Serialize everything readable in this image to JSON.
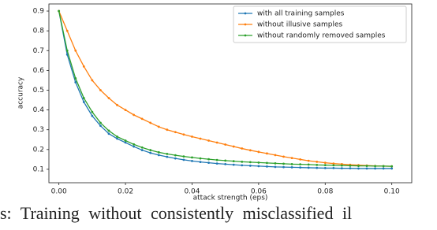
{
  "chart_data": {
    "type": "line",
    "x_label": "attack strength (eps)",
    "y_label": "accuracy",
    "caption": "s: Training without consistently misclassified il",
    "x": [
      0,
      0.0025,
      0.005,
      0.0075,
      0.01,
      0.0125,
      0.015,
      0.0175,
      0.02,
      0.0225,
      0.025,
      0.0275,
      0.03,
      0.0325,
      0.035,
      0.0375,
      0.04,
      0.0425,
      0.045,
      0.0475,
      0.05,
      0.0525,
      0.055,
      0.0575,
      0.06,
      0.0625,
      0.065,
      0.0675,
      0.07,
      0.0725,
      0.075,
      0.0775,
      0.08,
      0.0825,
      0.085,
      0.0875,
      0.09,
      0.0925,
      0.095,
      0.0975,
      0.1
    ],
    "series": [
      {
        "name": "with all training samples",
        "color": "#1f77b4",
        "values": [
          0.9,
          0.68,
          0.54,
          0.44,
          0.37,
          0.32,
          0.28,
          0.255,
          0.235,
          0.215,
          0.197,
          0.183,
          0.172,
          0.163,
          0.155,
          0.148,
          0.142,
          0.137,
          0.133,
          0.129,
          0.126,
          0.123,
          0.12,
          0.118,
          0.116,
          0.114,
          0.112,
          0.111,
          0.11,
          0.109,
          0.108,
          0.107,
          0.106,
          0.106,
          0.105,
          0.105,
          0.104,
          0.104,
          0.104,
          0.104,
          0.104
        ]
      },
      {
        "name": "without illusive samples",
        "color": "#ff7f0e",
        "values": [
          0.9,
          0.8,
          0.7,
          0.62,
          0.55,
          0.5,
          0.46,
          0.425,
          0.4,
          0.375,
          0.355,
          0.335,
          0.315,
          0.3,
          0.288,
          0.276,
          0.265,
          0.255,
          0.245,
          0.235,
          0.225,
          0.215,
          0.205,
          0.196,
          0.188,
          0.18,
          0.172,
          0.164,
          0.157,
          0.15,
          0.143,
          0.138,
          0.133,
          0.129,
          0.126,
          0.123,
          0.121,
          0.119,
          0.117,
          0.116,
          0.115
        ]
      },
      {
        "name": "without randomly removed samples",
        "color": "#2ca02c",
        "values": [
          0.9,
          0.7,
          0.56,
          0.46,
          0.39,
          0.335,
          0.295,
          0.265,
          0.245,
          0.226,
          0.21,
          0.197,
          0.186,
          0.178,
          0.171,
          0.165,
          0.16,
          0.155,
          0.151,
          0.147,
          0.144,
          0.141,
          0.138,
          0.136,
          0.134,
          0.132,
          0.13,
          0.128,
          0.126,
          0.125,
          0.124,
          0.122,
          0.121,
          0.12,
          0.119,
          0.118,
          0.117,
          0.117,
          0.116,
          0.116,
          0.115
        ]
      }
    ],
    "xlim": [
      -0.003,
      0.106
    ],
    "ylim": [
      0.032,
      0.936
    ],
    "xticks": [
      {
        "value": 0,
        "label": "0.00"
      },
      {
        "value": 0.02,
        "label": "0.02"
      },
      {
        "value": 0.04,
        "label": "0.04"
      },
      {
        "value": 0.06,
        "label": "0.06"
      },
      {
        "value": 0.08,
        "label": "0.08"
      },
      {
        "value": 0.1,
        "label": "0.10"
      }
    ],
    "yticks": [
      0.1,
      0.2,
      0.3,
      0.4,
      0.5,
      0.6,
      0.7,
      0.8,
      0.9
    ],
    "grid": false,
    "legend": "upper right"
  }
}
